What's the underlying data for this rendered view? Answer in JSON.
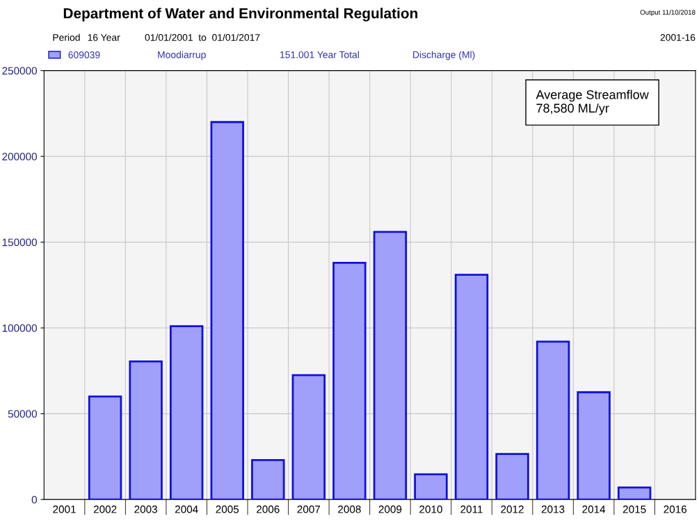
{
  "chart_data": {
    "type": "bar",
    "title": "Department of Water and Environmental Regulation",
    "annotations": [
      "Output 11/10/2018",
      "Period",
      "16 Year",
      "01/01/2001  to  01/01/2017",
      "2001-16",
      "Moodiarrup",
      "151.001 Year Total",
      "Discharge (Ml)",
      "Average Streamflow\n78,580 ML/yr"
    ],
    "categories": [
      "2001",
      "2002",
      "2003",
      "2004",
      "2005",
      "2006",
      "2007",
      "2008",
      "2009",
      "2010",
      "2011",
      "2012",
      "2013",
      "2014",
      "2015",
      "2016"
    ],
    "series": [
      {
        "name": "609039",
        "color": "#a0a0fa",
        "values": [
          null,
          60000,
          80500,
          101000,
          220000,
          23000,
          72500,
          138000,
          156000,
          14700,
          131000,
          26500,
          92000,
          62500,
          7000,
          null
        ]
      }
    ],
    "ylim": [
      0,
      250000
    ],
    "yticks": [
      0,
      50000,
      100000,
      150000,
      200000,
      250000
    ],
    "grid": true,
    "legend": "top left"
  }
}
